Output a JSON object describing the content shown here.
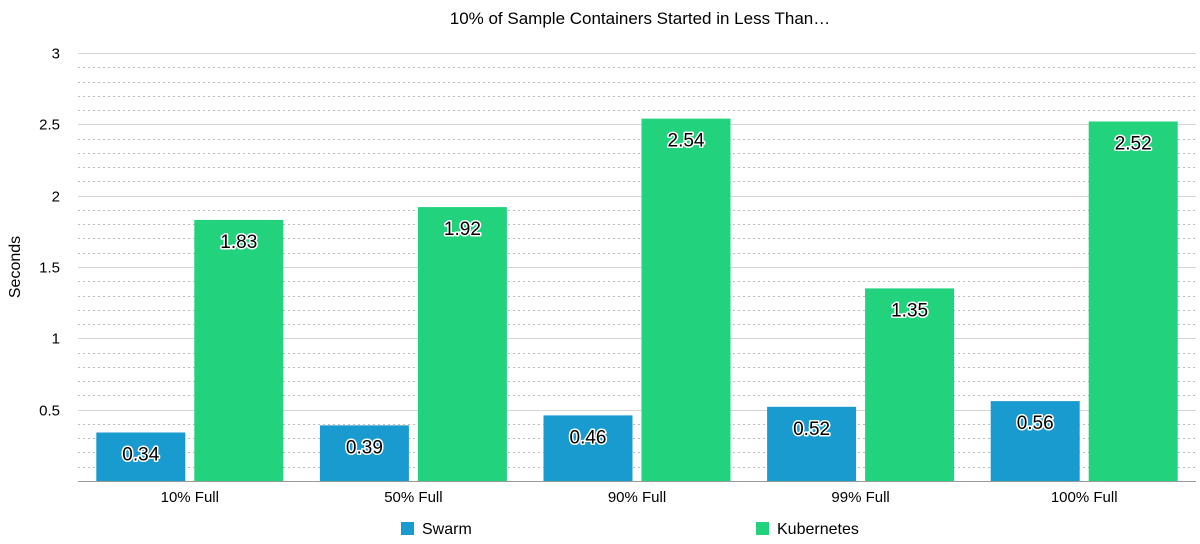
{
  "chart_data": {
    "type": "bar",
    "title": "10% of Sample Containers Started in Less Than…",
    "xlabel": "",
    "ylabel": "Seconds",
    "ylim": [
      0,
      3
    ],
    "yticks": [
      "0.5",
      "1",
      "1.5",
      "2",
      "2.5",
      "3"
    ],
    "categories": [
      "10% Full",
      "50% Full",
      "90% Full",
      "99% Full",
      "100% Full"
    ],
    "series": [
      {
        "name": "Swarm",
        "color": "#1a9bd0",
        "values": [
          0.34,
          0.39,
          0.46,
          0.52,
          0.56
        ],
        "labels": [
          "0.34",
          "0.39",
          "0.46",
          "0.52",
          "0.56"
        ]
      },
      {
        "name": "Kubernetes",
        "color": "#22d27c",
        "values": [
          1.83,
          1.92,
          2.54,
          1.35,
          2.52
        ],
        "labels": [
          "1.83",
          "1.92",
          "2.54",
          "1.35",
          "2.52"
        ]
      }
    ],
    "grid": true,
    "legend": "bottom"
  }
}
